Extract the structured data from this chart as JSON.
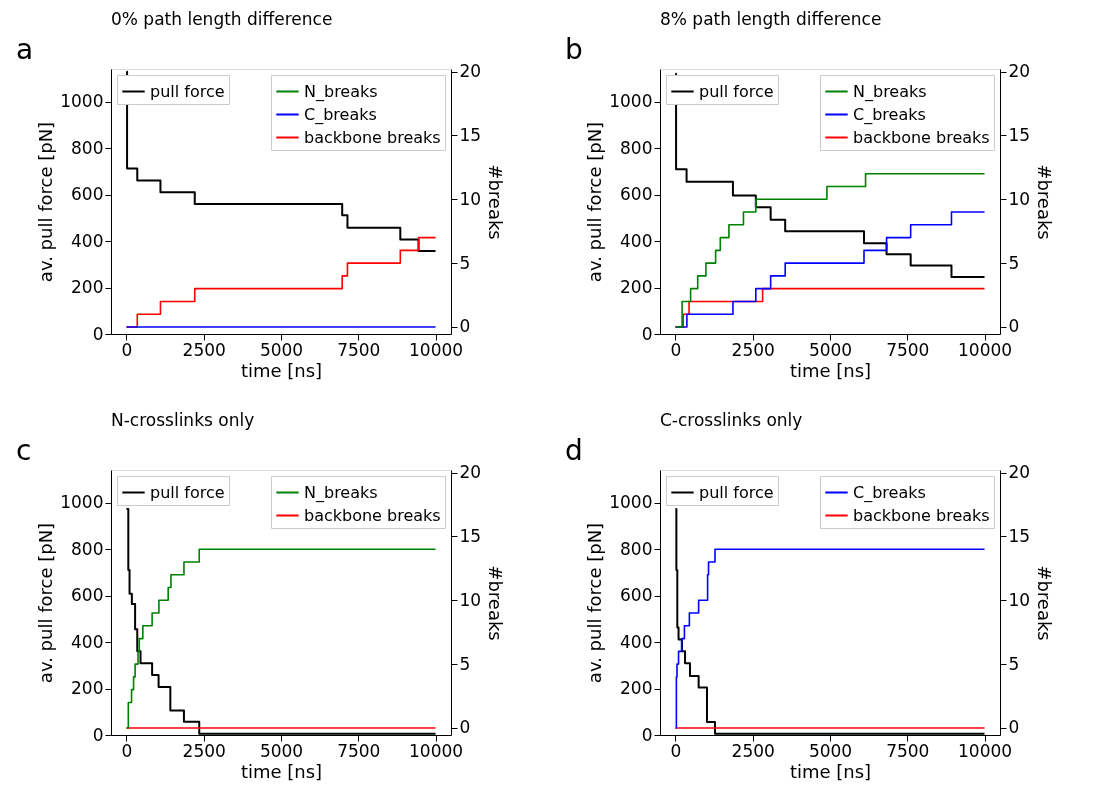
{
  "chart_data": [
    {
      "type": "line",
      "title": "0% path length difference",
      "annotations": [
        "a"
      ],
      "xlabel": "time [ns]",
      "ylabel": "av. pull force [pN]",
      "y2label": "#breaks",
      "xlim": [
        -500,
        10500
      ],
      "xticks": [
        0,
        2500,
        5000,
        7500,
        10000
      ],
      "ylim": [
        0,
        1140
      ],
      "yticks": [
        0,
        200,
        400,
        600,
        800,
        1000
      ],
      "y2lim": [
        -0.55,
        20.2
      ],
      "y2ticks": [
        0,
        5,
        10,
        15,
        20
      ],
      "grid": false,
      "legend": "top",
      "marker": "none",
      "line_style": "solid",
      "series": [
        {
          "name": "pull force",
          "color": "#000000",
          "type": "step",
          "x": [
            0,
            20,
            350,
            1100,
            2210,
            6980,
            7150,
            8860,
            9450,
            10000
          ],
          "values": [
            1128,
            712,
            660,
            610,
            559,
            511,
            457,
            407,
            357,
            357
          ]
        },
        {
          "name": "N_breaks",
          "color": "#008000",
          "type": "step",
          "axis": "y2"
        },
        {
          "name": "C_breaks",
          "color": "#0000ff",
          "type": "step",
          "axis": "y2",
          "x": [
            0,
            10000
          ],
          "values": [
            0,
            0
          ]
        },
        {
          "name": "backbone breaks",
          "color": "#ff0000",
          "type": "step",
          "axis": "y2",
          "x": [
            0,
            350,
            1100,
            2210,
            6980,
            7150,
            8860,
            9450,
            10000
          ],
          "values": [
            0,
            1,
            2,
            3,
            4,
            5,
            6,
            7,
            7
          ]
        }
      ]
    },
    {
      "type": "line",
      "title": "8% path length difference",
      "annotations": [
        "b"
      ],
      "xlabel": "time [ns]",
      "ylabel": "av. pull force [pN]",
      "y2label": "#breaks",
      "xlim": [
        -500,
        10500
      ],
      "xticks": [
        0,
        2500,
        5000,
        7500,
        10000
      ],
      "ylim": [
        0,
        1140
      ],
      "yticks": [
        0,
        200,
        400,
        600,
        800,
        1000
      ],
      "y2lim": [
        -0.55,
        20.2
      ],
      "y2ticks": [
        0,
        5,
        10,
        15,
        20
      ],
      "grid": false,
      "legend": "top",
      "marker": "none",
      "line_style": "solid",
      "series": [
        {
          "name": "pull force",
          "color": "#000000",
          "type": "step",
          "x": [
            0,
            20,
            360,
            1860,
            2600,
            3080,
            3550,
            6100,
            6830,
            7610,
            8930,
            10000
          ],
          "values": [
            1120,
            709,
            655,
            596,
            545,
            492,
            442,
            390,
            343,
            295,
            245,
            245
          ]
        },
        {
          "name": "N_breaks",
          "color": "#008000",
          "type": "step",
          "axis": "y2",
          "x": [
            0,
            215,
            490,
            720,
            985,
            1300,
            1450,
            1730,
            2200,
            2600,
            4900,
            6150,
            10000
          ],
          "values": [
            0,
            2,
            3,
            4,
            5,
            6,
            7,
            8,
            9,
            10,
            11,
            12,
            12
          ]
        },
        {
          "name": "C_breaks",
          "color": "#0000ff",
          "type": "step",
          "axis": "y2",
          "x": [
            0,
            370,
            1860,
            2600,
            3080,
            3550,
            6100,
            6830,
            7610,
            8930,
            10000
          ],
          "values": [
            0,
            1,
            2,
            3,
            4,
            5,
            6,
            7,
            8,
            9,
            9
          ]
        },
        {
          "name": "backbone breaks",
          "color": "#ff0000",
          "type": "step",
          "axis": "y2",
          "x": [
            0,
            250,
            440,
            2820,
            10000
          ],
          "values": [
            0,
            1,
            2,
            3,
            3
          ]
        }
      ]
    },
    {
      "type": "line",
      "title": "N-crosslinks only",
      "annotations": [
        "c"
      ],
      "xlabel": "time [ns]",
      "ylabel": "av. pull force [pN]",
      "y2label": "#breaks",
      "xlim": [
        -500,
        10500
      ],
      "xticks": [
        0,
        2500,
        5000,
        7500,
        10000
      ],
      "ylim": [
        0,
        1140
      ],
      "yticks": [
        0,
        200,
        400,
        600,
        800,
        1000
      ],
      "y2lim": [
        -0.55,
        20.2
      ],
      "y2ticks": [
        0,
        5,
        10,
        15,
        20
      ],
      "grid": false,
      "legend": "top",
      "marker": "none",
      "line_style": "solid",
      "series": [
        {
          "name": "pull force",
          "color": "#000000",
          "type": "step",
          "x": [
            0,
            60,
            100,
            175,
            280,
            350,
            455,
            830,
            1040,
            1420,
            1860,
            2355,
            10000
          ],
          "values": [
            972,
            710,
            608,
            564,
            455,
            360,
            309,
            258,
            207,
            105,
            57,
            5,
            5
          ]
        },
        {
          "name": "N_breaks",
          "color": "#008000",
          "type": "step",
          "axis": "y2",
          "x": [
            0,
            60,
            165,
            230,
            280,
            375,
            415,
            530,
            830,
            1050,
            1350,
            1440,
            1860,
            2355,
            10000
          ],
          "values": [
            0,
            2,
            3,
            4,
            5,
            6,
            7,
            8,
            9,
            10,
            11,
            12,
            13,
            14,
            14
          ]
        },
        {
          "name": "backbone breaks",
          "color": "#ff0000",
          "type": "step",
          "axis": "y2",
          "x": [
            0,
            10000
          ],
          "values": [
            0,
            0
          ]
        }
      ]
    },
    {
      "type": "line",
      "title": "C-crosslinks only",
      "annotations": [
        "d"
      ],
      "xlabel": "time [ns]",
      "ylabel": "av. pull force [pN]",
      "y2label": "#breaks",
      "xlim": [
        -500,
        10500
      ],
      "xticks": [
        0,
        2500,
        5000,
        7500,
        10000
      ],
      "ylim": [
        0,
        1140
      ],
      "yticks": [
        0,
        200,
        400,
        600,
        800,
        1000
      ],
      "y2lim": [
        -0.55,
        20.2
      ],
      "y2ticks": [
        0,
        5,
        10,
        15,
        20
      ],
      "grid": false,
      "legend": "top",
      "marker": "none",
      "line_style": "solid",
      "series": [
        {
          "name": "pull force",
          "color": "#000000",
          "type": "step",
          "x": [
            0,
            30,
            60,
            100,
            210,
            310,
            470,
            750,
            1020,
            1280,
            10000
          ],
          "values": [
            972,
            710,
            462,
            411,
            360,
            309,
            254,
            204,
            56,
            5,
            5
          ]
        },
        {
          "name": "C_breaks",
          "color": "#0000ff",
          "type": "step",
          "axis": "y2",
          "x": [
            0,
            30,
            50,
            100,
            200,
            290,
            450,
            750,
            1040,
            1070,
            1280,
            10000
          ],
          "values": [
            0,
            4,
            5,
            6,
            7,
            8,
            9,
            10,
            12,
            13,
            14,
            14
          ]
        },
        {
          "name": "backbone breaks",
          "color": "#ff0000",
          "type": "step",
          "axis": "y2",
          "x": [
            0,
            10000
          ],
          "values": [
            0,
            0
          ]
        }
      ]
    }
  ]
}
